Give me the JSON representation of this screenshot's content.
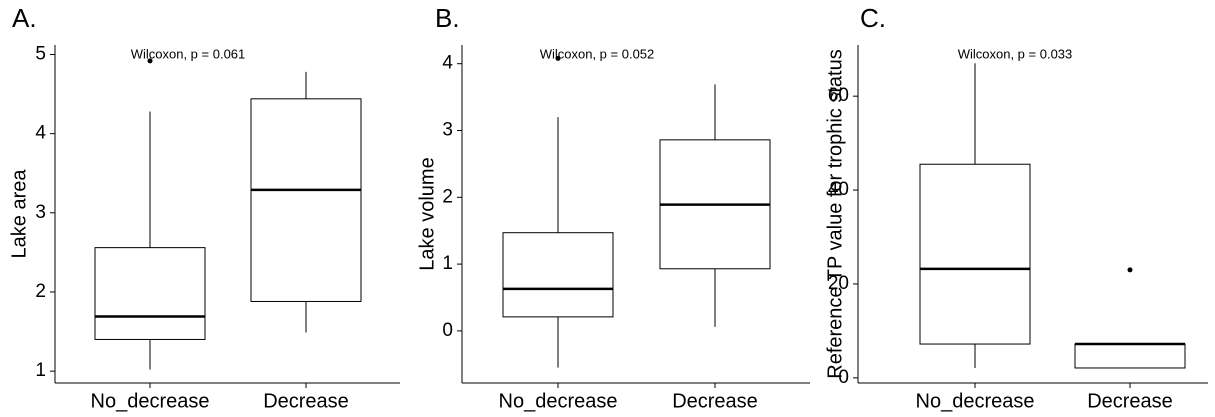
{
  "chart_data": [
    {
      "type": "box",
      "title": "A.",
      "y_label": "Lake area",
      "annotation": "Wilcoxon, p = 0.061",
      "categories": [
        "No_decrease",
        "Decrease"
      ],
      "boxes": [
        {
          "min": 1.02,
          "q1": 1.4,
          "median": 1.69,
          "q3": 2.56,
          "max": 4.28,
          "outliers": [
            4.92
          ]
        },
        {
          "min": 1.49,
          "q1": 1.88,
          "median": 3.29,
          "q3": 4.44,
          "max": 4.78,
          "outliers": []
        }
      ],
      "ylim": [
        0.85,
        5.12
      ],
      "yticks": [
        1,
        2,
        3,
        4,
        5
      ]
    },
    {
      "type": "box",
      "title": "B.",
      "y_label": "Lake volume",
      "annotation": "Wilcoxon, p = 0.052",
      "categories": [
        "No_decrease",
        "Decrease"
      ],
      "boxes": [
        {
          "min": -0.55,
          "q1": 0.21,
          "median": 0.63,
          "q3": 1.47,
          "max": 3.2,
          "outliers": [
            4.08
          ]
        },
        {
          "min": 0.06,
          "q1": 0.93,
          "median": 1.89,
          "q3": 2.86,
          "max": 3.69,
          "outliers": []
        }
      ],
      "ylim": [
        -0.78,
        4.28
      ],
      "yticks": [
        0,
        1,
        2,
        3,
        4
      ]
    },
    {
      "type": "box",
      "title": "C.",
      "y_label": "Reference TP value for trophic status",
      "annotation": "Wilcoxon, p = 0.033",
      "categories": [
        "No_decrease",
        "Decrease"
      ],
      "boxes": [
        {
          "min": 2.1,
          "q1": 7.2,
          "median": 23.2,
          "q3": 45.5,
          "max": 67,
          "outliers": []
        },
        {
          "min": 2.1,
          "q1": 2.1,
          "median": 7.2,
          "q3": 7.2,
          "max": 7.2,
          "outliers": [
            23
          ]
        }
      ],
      "ylim": [
        -1.1,
        70.9
      ],
      "yticks": [
        0,
        20,
        40,
        60
      ]
    }
  ]
}
